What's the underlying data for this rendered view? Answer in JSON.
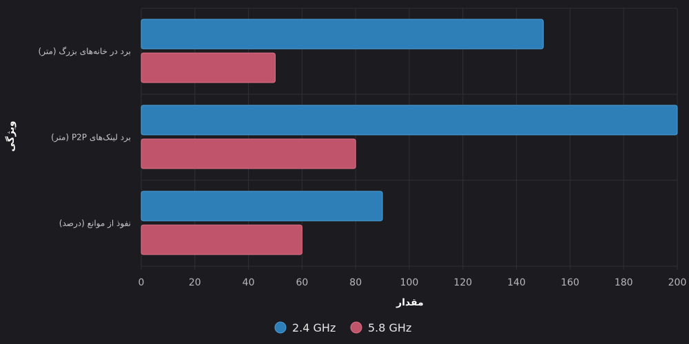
{
  "chart_data": {
    "type": "bar",
    "orientation": "horizontal",
    "categories": [
      "برد در خانه‌های بزرگ (متر)",
      "برد لینک‌های P2P (متر)",
      "نفوذ از موانع (درصد)"
    ],
    "series": [
      {
        "name": "2.4 GHz",
        "values": [
          150,
          200,
          90
        ],
        "color": "#2e7fb8"
      },
      {
        "name": "5.8 GHz",
        "values": [
          50,
          80,
          60
        ],
        "color": "#c0546b"
      }
    ],
    "xlim": [
      0,
      200
    ],
    "xticks": [
      "0",
      "20",
      "40",
      "60",
      "80",
      "100",
      "120",
      "140",
      "160",
      "180",
      "200"
    ],
    "xlabel": "مقدار",
    "ylabel": "ویژگی",
    "grid": true,
    "legend_position": "bottom-center"
  }
}
